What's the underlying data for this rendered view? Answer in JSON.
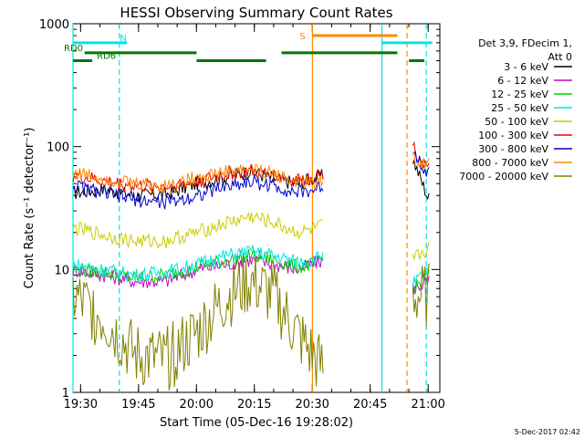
{
  "chart_data": {
    "type": "line",
    "title": "HESSI Observing Summary Count Rates",
    "xlabel": "Start Time (05-Dec-16 19:28:02)",
    "ylabel": "Count Rate (s⁻¹ detector⁻¹)",
    "yscale": "log",
    "ylim": [
      1,
      1000
    ],
    "xlim_minutes_from_19_28_02": [
      0,
      95
    ],
    "xticks": [
      "19:30",
      "19:45",
      "20:00",
      "20:15",
      "20:30",
      "20:45",
      "21:00"
    ],
    "xtick_minutes": [
      1.97,
      16.97,
      31.97,
      46.97,
      61.97,
      76.97,
      91.97
    ],
    "yticks": [
      "1",
      "10",
      "100",
      "1000"
    ],
    "ytick_values": [
      1,
      10,
      100,
      1000
    ],
    "legend": {
      "header": [
        "Det 3,9, FDecim 1,",
        "Att 0"
      ],
      "placement": "right"
    },
    "series": [
      {
        "name": "3 - 6 keV",
        "color": "#000000",
        "values": [
          42,
          45,
          40,
          41,
          50,
          57,
          63,
          55,
          50,
          55,
          58,
          80,
          38
        ]
      },
      {
        "name": "6 - 12 keV",
        "color": "#cc00cc",
        "values": [
          10,
          9,
          8,
          8,
          10,
          11,
          12,
          11,
          10,
          11,
          12,
          7,
          8
        ]
      },
      {
        "name": "12 - 25 keV",
        "color": "#00cc00",
        "values": [
          10,
          9.5,
          8.5,
          9,
          10.5,
          12,
          13,
          12,
          10.5,
          11,
          12,
          7,
          9
        ]
      },
      {
        "name": "25 - 50 keV",
        "color": "#00e5e5",
        "values": [
          11,
          10,
          9,
          9.5,
          11,
          13,
          14,
          13,
          11.5,
          12,
          13,
          7.5,
          10
        ]
      },
      {
        "name": "50 - 100 keV",
        "color": "#cccc00",
        "values": [
          22,
          19,
          17,
          17,
          20,
          24,
          27,
          24,
          20,
          21,
          23,
          12,
          15
        ]
      },
      {
        "name": "100 - 300 keV",
        "color": "#ee0000",
        "values": [
          58,
          52,
          48,
          47,
          52,
          60,
          63,
          58,
          52,
          57,
          62,
          100,
          65
        ]
      },
      {
        "name": "300 - 800 keV",
        "color": "#0000cc",
        "values": [
          48,
          42,
          37,
          35,
          40,
          48,
          52,
          48,
          42,
          44,
          48,
          95,
          60
        ]
      },
      {
        "name": "800 - 7000 keV",
        "color": "#ff8800",
        "values": [
          62,
          55,
          50,
          48,
          56,
          63,
          66,
          60,
          52,
          50,
          55,
          80,
          70
        ]
      },
      {
        "name": "7000 - 20000 keV",
        "color": "#808000",
        "values": [
          6,
          4,
          2,
          1.8,
          3,
          6,
          8,
          6,
          3,
          2,
          1.5,
          6,
          6
        ]
      }
    ],
    "x_minutes": [
      0,
      8,
      16,
      24,
      32,
      40,
      46,
      52,
      58,
      62,
      65,
      88,
      92
    ],
    "annotations": {
      "bars": [
        {
          "label": "N",
          "color": "#00e5e5",
          "level": 700,
          "from_min": 0,
          "to_min": 14
        },
        {
          "label": "",
          "color": "#00e5e5",
          "level": 700,
          "from_min": 80,
          "to_min": 93
        },
        {
          "label": "S",
          "color": "#ff8800",
          "level": 800,
          "from_min": 62,
          "to_min": 84
        },
        {
          "label": "RD0",
          "color": "#007700",
          "level": 580,
          "from_min": 3,
          "to_min": 32
        },
        {
          "label": "",
          "color": "#007700",
          "level": 580,
          "from_min": 54,
          "to_min": 84
        },
        {
          "label": "RD6",
          "color": "#007700",
          "level": 500,
          "from_min": 0,
          "to_min": 5
        },
        {
          "label": "",
          "color": "#007700",
          "level": 500,
          "from_min": 32,
          "to_min": 50
        },
        {
          "label": "",
          "color": "#007700",
          "level": 500,
          "from_min": 87,
          "to_min": 91
        }
      ],
      "vlines": [
        {
          "min": 0,
          "color": "#00e5e5",
          "style": "solid"
        },
        {
          "min": 12,
          "color": "#00e5e5",
          "style": "dashed"
        },
        {
          "min": 62,
          "color": "#ff8800",
          "style": "solid"
        },
        {
          "min": 80,
          "color": "#00e5e5",
          "style": "solid"
        },
        {
          "min": 86.5,
          "color": "#ff8800",
          "style": "dashed"
        },
        {
          "min": 91.5,
          "color": "#00e5e5",
          "style": "dashed"
        }
      ]
    }
  },
  "footer": {
    "timestamp": "5-Dec-2017 02:42"
  }
}
